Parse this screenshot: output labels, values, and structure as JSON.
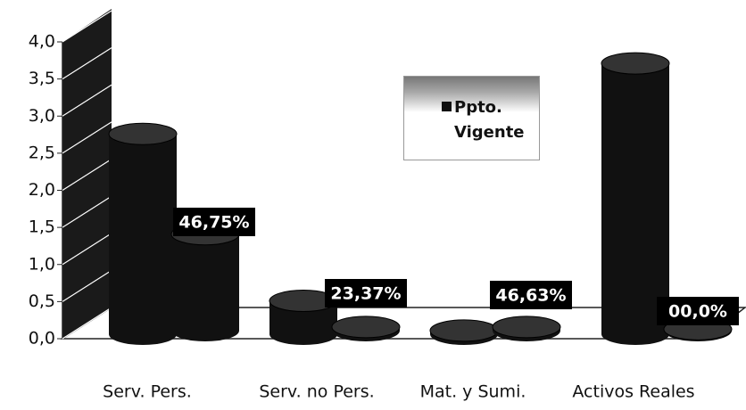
{
  "chart_data": {
    "type": "bar3d",
    "categories": [
      "Serv. Pers.",
      "Serv. no Pers.",
      "Mat. y Sumi.",
      "Activos Reales"
    ],
    "series": [
      {
        "name": "Ppto. Vigente",
        "color": "#111111",
        "values": [
          2.7,
          0.45,
          0.05,
          3.65
        ]
      },
      {
        "color": "#111111",
        "values": [
          1.3,
          0.05,
          0.05,
          0.02
        ]
      }
    ],
    "annotations": [
      "46,75%",
      "23,37%",
      "46,63%",
      "00,0%"
    ],
    "ylim": [
      0,
      4
    ],
    "yticks": [
      {
        "value": 0,
        "label": "0,0"
      },
      {
        "value": 0.5,
        "label": "0,5"
      },
      {
        "value": 1,
        "label": "1,0"
      },
      {
        "value": 1.5,
        "label": "1,5"
      },
      {
        "value": 2,
        "label": "2,0"
      },
      {
        "value": 2.5,
        "label": "2,5"
      },
      {
        "value": 3,
        "label": "3,0"
      },
      {
        "value": 3.5,
        "label": "3,5"
      },
      {
        "value": 4,
        "label": "4,0"
      }
    ],
    "grid": true,
    "legend": "upper right"
  }
}
